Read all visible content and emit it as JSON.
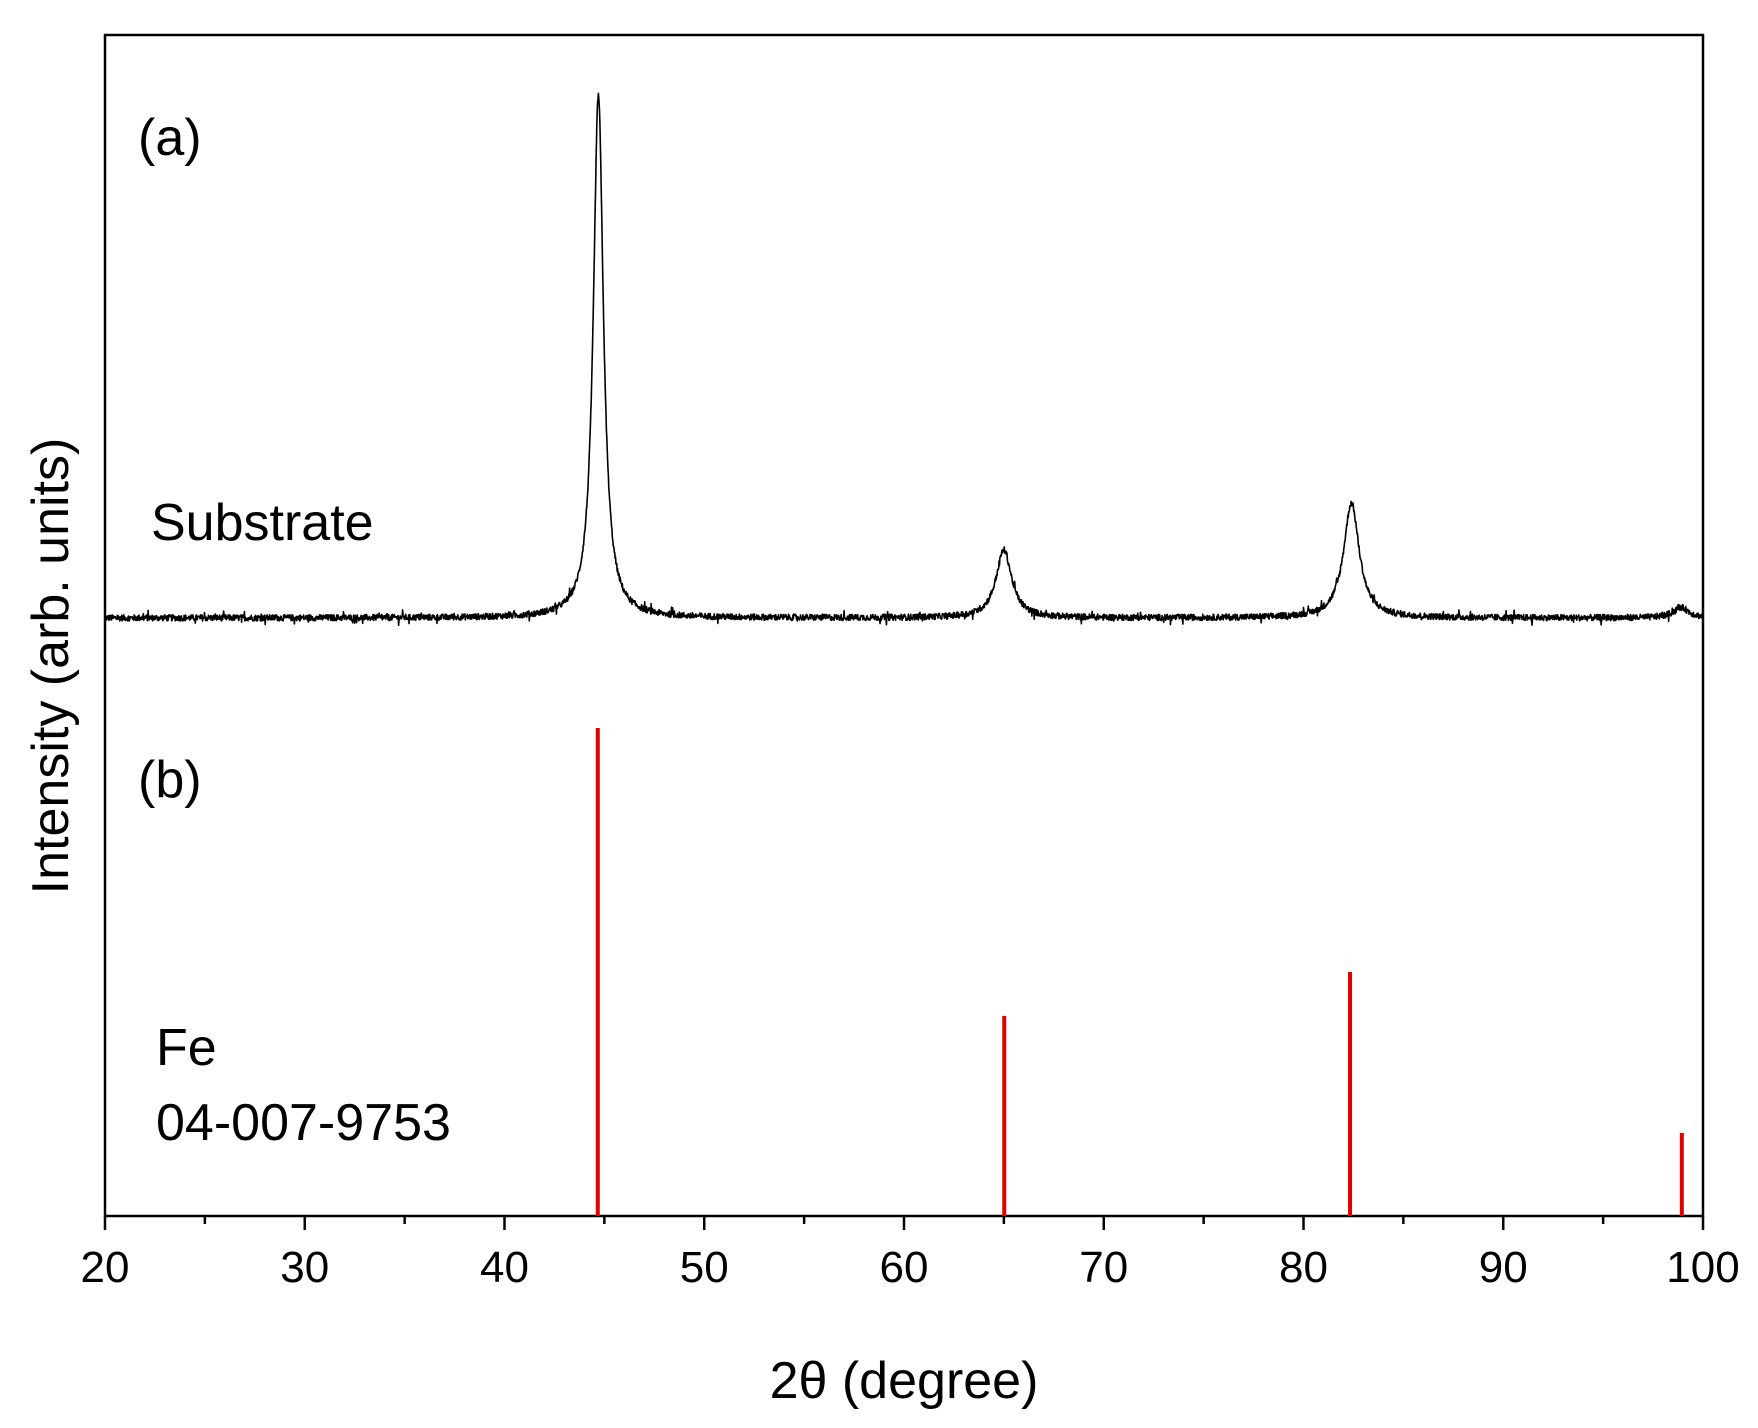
{
  "chart_data": {
    "type": "line",
    "xlabel": "2θ (degree)",
    "ylabel": "Intensity (arb. units)",
    "xlim": [
      20,
      100
    ],
    "x_ticks": [
      20,
      30,
      40,
      50,
      60,
      70,
      80,
      90,
      100
    ],
    "x_tick_labels": [
      "20",
      "30",
      "40",
      "50",
      "60",
      "70",
      "80",
      "90",
      "100"
    ],
    "x_minor_ticks": [
      25,
      35,
      45,
      55,
      65,
      75,
      85,
      95
    ],
    "grid": false,
    "panels": [
      {
        "panel_label": "(a)",
        "series_label": "Substrate",
        "type": "line",
        "color": "#000000",
        "ylim": [
          0,
          100
        ],
        "baseline": 6,
        "noise": 0.6,
        "peaks": [
          {
            "x": 44.7,
            "height": 100,
            "width": 0.45
          },
          {
            "x": 65.0,
            "height": 13,
            "width": 0.7
          },
          {
            "x": 82.4,
            "height": 22,
            "width": 0.7
          },
          {
            "x": 98.9,
            "height": 2,
            "width": 0.7
          }
        ]
      },
      {
        "panel_label": "(b)",
        "series_label": "Fe",
        "reference_code": "04-007-9753",
        "type": "bar",
        "color": "#e00000",
        "ylim": [
          0,
          100
        ],
        "x": [
          44.67,
          65.02,
          82.33,
          98.94
        ],
        "values": [
          100,
          41,
          50,
          17
        ]
      }
    ]
  }
}
